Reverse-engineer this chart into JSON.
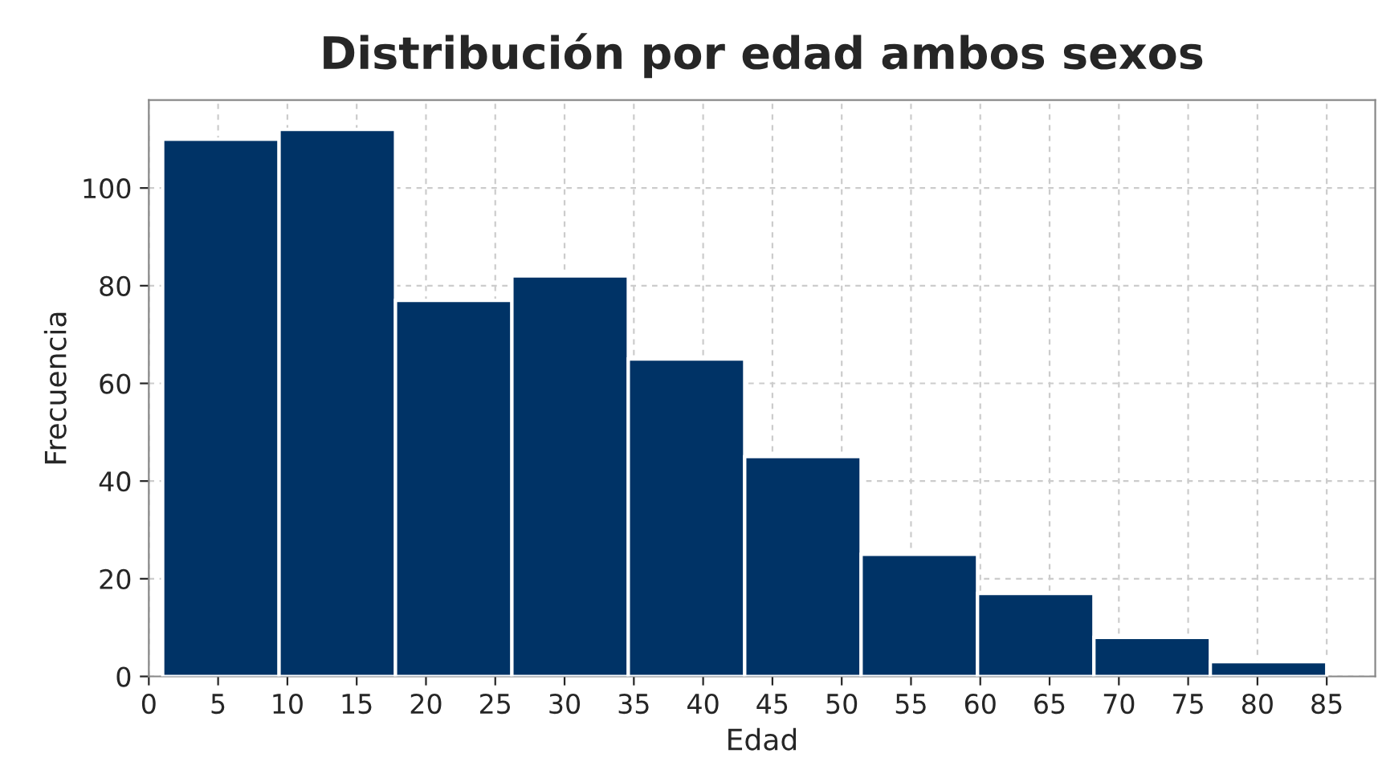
{
  "chart_data": {
    "type": "histogram",
    "title": "Distribución por edad ambos sexos",
    "xlabel": "Edad",
    "ylabel": "Frecuencia",
    "bins": [
      1,
      9.4,
      17.8,
      26.2,
      34.6,
      43,
      51.4,
      59.8,
      68.2,
      76.6,
      85
    ],
    "values": [
      110,
      112,
      77,
      82,
      65,
      45,
      25,
      17,
      8,
      3
    ],
    "color": "#003366",
    "xlim": [
      0,
      88.5
    ],
    "xticks": [
      0,
      5,
      10,
      15,
      20,
      25,
      30,
      35,
      40,
      45,
      50,
      55,
      60,
      65,
      70,
      75,
      80,
      85
    ],
    "ylim": [
      0,
      118
    ],
    "yticks": [
      0,
      20,
      40,
      60,
      80,
      100
    ],
    "grid": true
  }
}
